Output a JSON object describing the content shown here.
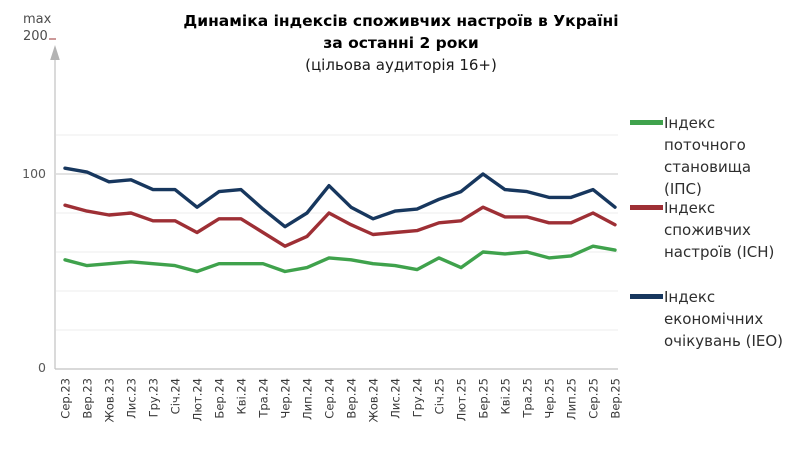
{
  "header": {
    "title_line1": "Динаміка індексів споживчих настроїв в Україні",
    "title_line2": "за останні 2 роки",
    "title_line3": "(цільова аудиторія 16+)"
  },
  "y_axis": {
    "max_label": "max",
    "max_value": "200",
    "tick_upper": "100",
    "tick_lower": "0"
  },
  "legend": {
    "items": [
      {
        "display_label": "Індекс\nпоточного\nстановища\n(ІПС)",
        "name": "Індекс поточного становища (ІПС)",
        "color": "#3fa24c"
      },
      {
        "display_label": "Індекс\nспоживчих\nнастроїв (ІСН)",
        "name": "Індекс споживчих настроїв (ІСН)",
        "color": "#9e2f35"
      },
      {
        "display_label": "Індекс\nекономічних\nочікувань (ІЕО)",
        "name": "Індекс економічних очікувань (ІЕО)",
        "color": "#17375e"
      }
    ]
  },
  "chart_data": {
    "type": "line",
    "title": "Динаміка індексів споживчих настроїв в Україні за останні 2 роки (цільова аудиторія 16+)",
    "xlabel": "",
    "ylabel": "",
    "axis_max_annotation": "max 200",
    "ylim": [
      0,
      200
    ],
    "visible_y_span": [
      0,
      160
    ],
    "y_ticks_labeled": [
      0,
      100
    ],
    "gridline_values_minor": [
      20,
      40,
      60,
      80,
      120
    ],
    "gridline_values_major": [
      100
    ],
    "legend_position": "right",
    "categories": [
      "Сер.23",
      "Вер.23",
      "Жов.23",
      "Лис.23",
      "Гру.23",
      "Січ.24",
      "Лют.24",
      "Бер.24",
      "Кві.24",
      "Тра.24",
      "Чер.24",
      "Лип.24",
      "Сер.24",
      "Вер.24",
      "Жов.24",
      "Лис.24",
      "Гру.24",
      "Січ.25",
      "Лют.25",
      "Бер.25",
      "Кві.25",
      "Тра.25",
      "Чер.25",
      "Лип.25",
      "Сер.25",
      "Вер.25"
    ],
    "series": [
      {
        "name": "Індекс поточного становища (ІПС)",
        "color": "#3fa24c",
        "values": [
          56,
          53,
          54,
          55,
          54,
          53,
          50,
          54,
          54,
          54,
          50,
          52,
          57,
          56,
          54,
          53,
          51,
          57,
          52,
          60,
          59,
          60,
          57,
          58,
          63,
          61
        ]
      },
      {
        "name": "Індекс споживчих настроїв (ІСН)",
        "color": "#9e2f35",
        "values": [
          84,
          81,
          79,
          80,
          76,
          76,
          70,
          77,
          77,
          70,
          63,
          68,
          80,
          74,
          69,
          70,
          71,
          75,
          76,
          83,
          78,
          78,
          75,
          75,
          80,
          74
        ]
      },
      {
        "name": "Індекс економічних очікувань (ІЕО)",
        "color": "#17375e",
        "values": [
          103,
          101,
          96,
          97,
          92,
          92,
          83,
          91,
          92,
          82,
          73,
          80,
          94,
          83,
          77,
          81,
          82,
          87,
          91,
          100,
          92,
          91,
          88,
          88,
          92,
          83
        ]
      }
    ],
    "styling": {
      "line_width": 3.4,
      "grid_color_minor": "#ededed",
      "grid_color_major": "#c7c7c7",
      "axis_color": "#c2c2c2",
      "arrow_color": "#b3b3b3",
      "tick_label_color": "#595959",
      "x_label_color": "#3a3a3a"
    }
  }
}
